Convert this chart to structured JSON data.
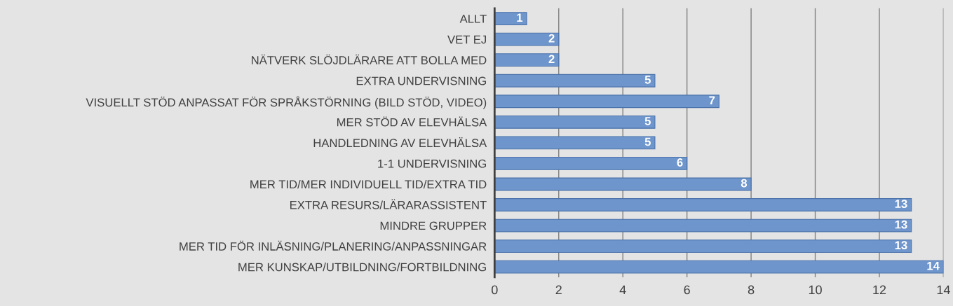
{
  "chart_data": {
    "type": "bar",
    "orientation": "horizontal",
    "categories": [
      "ALLT",
      "VET EJ",
      "NÄTVERK SLÖJDLÄRARE ATT BOLLA MED",
      "EXTRA UNDERVISNING",
      "VISUELLT STÖD ANPASSAT FÖR SPRÅKSTÖRNING (BILD STÖD, VIDEO)",
      "MER STÖD AV ELEVHÄLSA",
      "HANDLEDNING AV ELEVHÄLSA",
      "1-1 UNDERVISNING",
      "MER TID/MER INDIVIDUELL TID/EXTRA TID",
      "EXTRA RESURS/LÄRARASSISTENT",
      "MINDRE GRUPPER",
      "MER TID FÖR INLÄSNING/PLANERING/ANPASSNINGAR",
      "MER KUNSKAP/UTBILDNING/FORTBILDNING"
    ],
    "values": [
      1,
      2,
      2,
      5,
      7,
      5,
      5,
      6,
      8,
      13,
      13,
      13,
      14
    ],
    "color": "#6f96cc",
    "xlim": [
      0,
      14
    ],
    "xticks": [
      0,
      2,
      4,
      6,
      8,
      10,
      12,
      14
    ],
    "grid": "x",
    "data_labels": true
  }
}
